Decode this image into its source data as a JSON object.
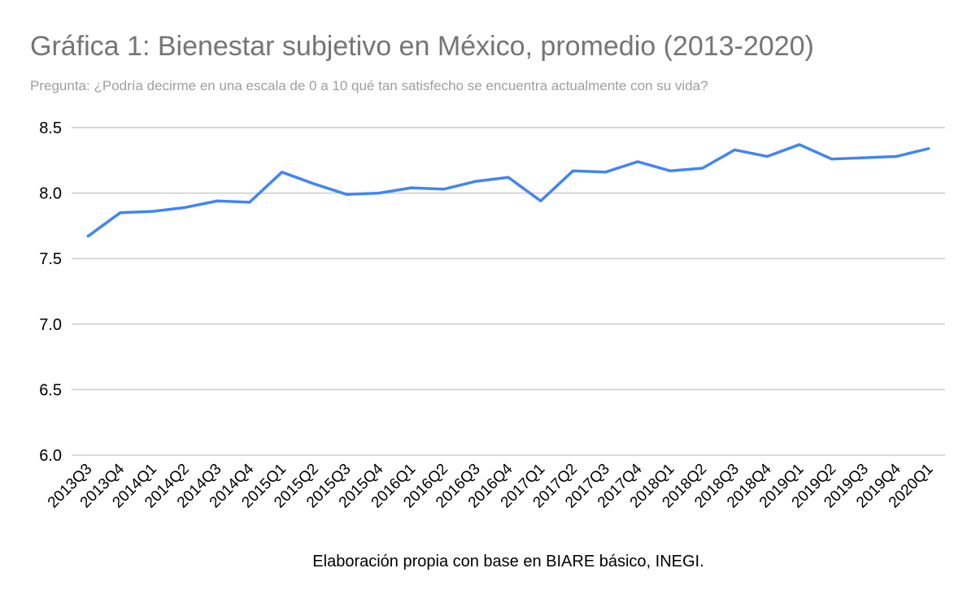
{
  "chart_data": {
    "type": "line",
    "title": "Gráfica 1: Bienestar subjetivo en México, promedio (2013-2020)",
    "subtitle": "Pregunta: ¿Podría decirme en una escala de 0 a 10 qué tan satisfecho se encuentra actualmente con su vida?",
    "footer": "Elaboración propia con base en BIARE básico, INEGI.",
    "xlabel": "",
    "ylabel": "",
    "ylim": [
      6.0,
      8.5
    ],
    "yticks": [
      "6.0",
      "6.5",
      "7.0",
      "7.5",
      "8.0",
      "8.5"
    ],
    "grid": true,
    "legend": "none",
    "line_color": "#4285f4",
    "categories": [
      "2013Q3",
      "2013Q4",
      "2014Q1",
      "2014Q2",
      "2014Q3",
      "2014Q4",
      "2015Q1",
      "2015Q2",
      "2015Q3",
      "2015Q4",
      "2016Q1",
      "2016Q2",
      "2016Q3",
      "2016Q4",
      "2017Q1",
      "2017Q2",
      "2017Q3",
      "2017Q4",
      "2018Q1",
      "2018Q2",
      "2018Q3",
      "2018Q4",
      "2019Q1",
      "2019Q2",
      "2019Q3",
      "2019Q4",
      "2020Q1"
    ],
    "values": [
      7.67,
      7.85,
      7.86,
      7.89,
      7.94,
      7.93,
      8.16,
      8.07,
      7.99,
      8.0,
      8.04,
      8.03,
      8.09,
      8.12,
      7.94,
      8.17,
      8.16,
      8.24,
      8.17,
      8.19,
      8.33,
      8.28,
      8.37,
      8.26,
      8.27,
      8.28,
      8.34
    ]
  }
}
